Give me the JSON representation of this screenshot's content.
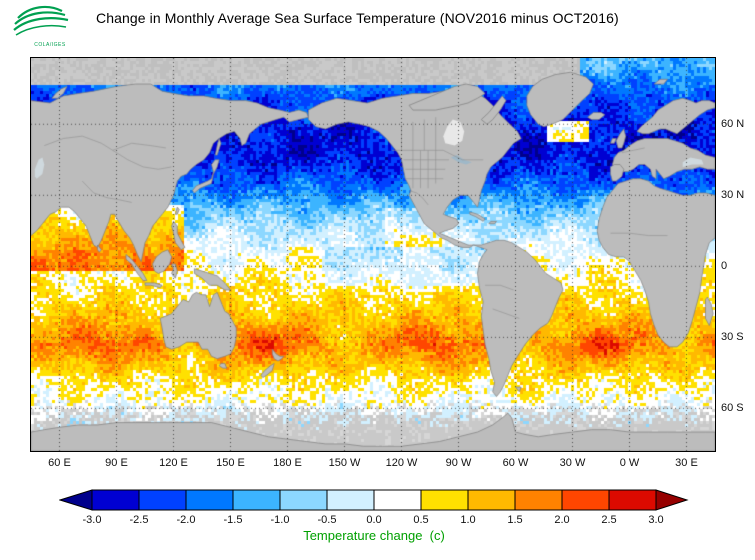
{
  "header": {
    "title": "Change in Monthly Average Sea Surface Temperature (NOV2016 minus OCT2016)",
    "logo_text": "COLA/IGES"
  },
  "map": {
    "lat_ticks": [
      {
        "label": "60 N",
        "lat": 60
      },
      {
        "label": "30 N",
        "lat": 30
      },
      {
        "label": "0",
        "lat": 0
      },
      {
        "label": "30 S",
        "lat": -30
      },
      {
        "label": "60 S",
        "lat": -60
      }
    ],
    "lon_ticks": [
      {
        "label": "60 E",
        "lon": 60
      },
      {
        "label": "90 E",
        "lon": 90
      },
      {
        "label": "120 E",
        "lon": 120
      },
      {
        "label": "150 E",
        "lon": 150
      },
      {
        "label": "180 E",
        "lon": 180
      },
      {
        "label": "150 W",
        "lon": 210
      },
      {
        "label": "120 W",
        "lon": 240
      },
      {
        "label": "90 W",
        "lon": 270
      },
      {
        "label": "60 W",
        "lon": 300
      },
      {
        "label": "30 W",
        "lon": 330
      },
      {
        "label": "0 W",
        "lon": 360
      },
      {
        "label": "30 E",
        "lon": 390
      }
    ],
    "land_color": "#bcbcbc",
    "coast_color": "#7d7d7d",
    "grid_color": "#2e2e2e",
    "ice_color": "#c9c9c9"
  },
  "colorbar": {
    "label": "Temperature change  (c)",
    "label_color": "#00A000",
    "ticks": [
      "-3.0",
      "-2.5",
      "-2.0",
      "-1.5",
      "-1.0",
      "-0.5",
      "0.0",
      "0.5",
      "1.0",
      "1.5",
      "2.0",
      "2.5",
      "3.0"
    ],
    "colors": [
      "#00008c",
      "#0000d2",
      "#0041ff",
      "#0078ff",
      "#3cb4ff",
      "#8cd7ff",
      "#d2f0ff",
      "#ffffff",
      "#ffe100",
      "#ffb900",
      "#ff8200",
      "#ff4600",
      "#dc0a00",
      "#960000"
    ]
  },
  "chart_data": {
    "type": "heatmap",
    "title": "Change in Monthly Average Sea Surface Temperature (NOV2016 minus OCT2016)",
    "variable": "sea_surface_temperature_change",
    "units": "C",
    "period": "NOV2016 minus OCT2016",
    "legend_label": "Temperature change  (c)",
    "lon_domain": [
      45,
      405
    ],
    "lat_domain": [
      -78,
      88
    ],
    "lon_gridlines_deg": 30,
    "lat_gridlines_deg": 30,
    "scale_boundaries": [
      -3,
      -2.5,
      -2,
      -1.5,
      -1,
      -0.5,
      0,
      0.5,
      1,
      1.5,
      2,
      2.5,
      3
    ],
    "zonal_mean_profile": {
      "lats": [
        85,
        70,
        58,
        45,
        35,
        25,
        15,
        5,
        -5,
        -15,
        -25,
        -33,
        -40,
        -48,
        -56,
        -66,
        -78
      ],
      "values": [
        -1.2,
        -2.2,
        -2.7,
        -2.6,
        -2.0,
        -1.1,
        -0.4,
        0.15,
        0.45,
        0.8,
        1.3,
        1.75,
        1.25,
        0.6,
        0.25,
        0.05,
        0
      ]
    },
    "anomaly_patches": [
      {
        "name": "north-indian-ocean-warming",
        "lon": [
          45,
          125
        ],
        "lat": [
          -2,
          26
        ],
        "delta": 1.5
      },
      {
        "name": "subpolar-north-atlantic-warm-patch",
        "lon": [
          316,
          338
        ],
        "lat": [
          53,
          62
        ],
        "delta": 3.2
      },
      {
        "name": "eastern-equatorial-pacific-cooling",
        "lon": [
          200,
          285
        ],
        "lat": [
          -8,
          8
        ],
        "delta": -0.45
      },
      {
        "name": "northeast-pacific-moderation",
        "lon": [
          232,
          262
        ],
        "lat": [
          8,
          25
        ],
        "delta": 0.55
      }
    ]
  }
}
